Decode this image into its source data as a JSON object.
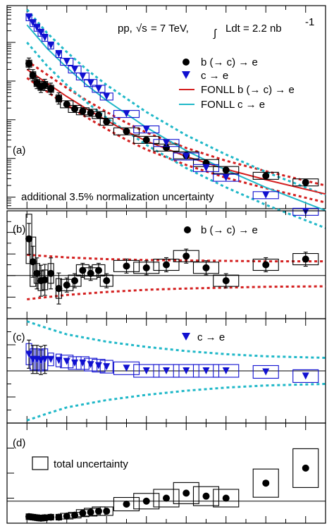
{
  "chart_data": [
    {
      "panel": "a",
      "type": "scatter",
      "panel_label": "(a)",
      "header": {
        "pre": "pp, ",
        "sqrt": "√s",
        "mid": " = 7 TeV, ",
        "integral": "Ldt = 2.2 nb",
        "exp": "-1"
      },
      "note": "additional 3.5% normalization uncertainty",
      "log_y": true,
      "xlim": [
        0.5,
        8.5
      ],
      "ylim_decades": 9,
      "series": [
        {
          "name": "b (→ c) → e",
          "marker": "circle",
          "color": "#000000",
          "x": [
            1.05,
            1.15,
            1.25,
            1.35,
            1.45,
            1.6,
            1.8,
            2.0,
            2.2,
            2.4,
            2.6,
            2.8,
            3.0,
            3.5,
            4.0,
            4.5,
            5.0,
            5.5,
            6.0,
            7.0,
            8.0
          ],
          "y": [
            -1.55,
            -1.85,
            -2.05,
            -2.15,
            -2.1,
            -2.2,
            -2.45,
            -2.6,
            -2.72,
            -2.78,
            -2.82,
            -2.88,
            -3.05,
            -3.3,
            -3.52,
            -3.72,
            -3.92,
            -4.12,
            -4.3,
            -4.45,
            -4.62
          ]
        },
        {
          "name": "c → e",
          "marker": "triangle-down",
          "color": "#1010d0",
          "x": [
            1.05,
            1.15,
            1.25,
            1.35,
            1.45,
            1.6,
            1.8,
            2.0,
            2.2,
            2.4,
            2.6,
            2.8,
            3.0,
            3.5,
            4.0,
            4.5,
            5.0,
            5.5,
            6.0,
            7.0,
            8.0
          ],
          "y": [
            -0.35,
            -0.5,
            -0.62,
            -0.75,
            -0.88,
            -1.08,
            -1.3,
            -1.5,
            -1.7,
            -1.88,
            -2.05,
            -2.2,
            -2.4,
            -2.85,
            -3.25,
            -3.6,
            -3.95,
            -4.25,
            -4.5,
            -4.95,
            -5.38
          ]
        }
      ],
      "curves": [
        {
          "name": "FONLL b (→ c) → e",
          "color": "#d42020",
          "x": [
            1.0,
            1.5,
            2.0,
            2.5,
            3.0,
            3.5,
            4.0,
            5.0,
            6.0,
            7.0,
            8.5
          ],
          "y": [
            -1.7,
            -2.05,
            -2.4,
            -2.72,
            -3.02,
            -3.3,
            -3.55,
            -3.95,
            -4.28,
            -4.55,
            -4.92
          ]
        },
        {
          "name": "FONLL c → e",
          "color": "#20b8c8",
          "x": [
            1.0,
            1.5,
            2.0,
            2.5,
            3.0,
            3.5,
            4.0,
            5.0,
            6.0,
            7.0,
            8.5
          ],
          "y": [
            -0.55,
            -1.15,
            -1.65,
            -2.1,
            -2.5,
            -2.85,
            -3.2,
            -3.8,
            -4.3,
            -4.75,
            -5.35
          ]
        }
      ]
    },
    {
      "panel": "b",
      "type": "scatter",
      "panel_label": "(b)",
      "legend": "b (→ c) → e",
      "xlim": [
        0.5,
        8.5
      ],
      "ylim": [
        -1.0,
        1.5
      ],
      "points": {
        "x": [
          1.05,
          1.15,
          1.25,
          1.35,
          1.45,
          1.6,
          1.8,
          2.0,
          2.2,
          2.4,
          2.6,
          2.8,
          3.0,
          3.5,
          4.0,
          4.5,
          5.0,
          5.5,
          6.0,
          7.0,
          8.0
        ],
        "y": [
          0.85,
          0.32,
          0.05,
          -0.12,
          -0.1,
          0.05,
          -0.3,
          -0.22,
          -0.12,
          0.12,
          0.05,
          0.12,
          -0.12,
          0.22,
          0.18,
          0.25,
          0.45,
          0.18,
          -0.12,
          0.25,
          0.38
        ]
      },
      "band_upper": {
        "x": [
          1.0,
          2.0,
          3.0,
          4.0,
          5.0,
          6.0,
          7.0,
          8.5
        ],
        "y": [
          0.48,
          0.42,
          0.38,
          0.36,
          0.35,
          0.34,
          0.33,
          0.33
        ]
      },
      "band_lower": {
        "x": [
          1.0,
          2.0,
          3.0,
          4.0,
          5.0,
          6.0,
          7.0,
          8.5
        ],
        "y": [
          -0.55,
          -0.45,
          -0.38,
          -0.33,
          -0.3,
          -0.28,
          -0.26,
          -0.25
        ]
      }
    },
    {
      "panel": "c",
      "type": "scatter",
      "panel_label": "(c)",
      "legend": "c → e",
      "xlim": [
        0.5,
        8.5
      ],
      "ylim": [
        -1.0,
        1.0
      ],
      "points": {
        "x": [
          1.05,
          1.15,
          1.25,
          1.35,
          1.45,
          1.6,
          1.8,
          2.0,
          2.2,
          2.4,
          2.6,
          2.8,
          3.0,
          3.5,
          4.0,
          4.5,
          5.0,
          5.5,
          6.0,
          7.0,
          8.0
        ],
        "y": [
          0.32,
          0.22,
          0.22,
          0.2,
          0.22,
          0.22,
          0.2,
          0.18,
          0.15,
          0.15,
          0.12,
          0.1,
          0.08,
          0.05,
          0.0,
          0.0,
          0.0,
          0.0,
          0.0,
          -0.02,
          -0.1
        ]
      },
      "band_upper": {
        "x": [
          1.0,
          1.5,
          2.0,
          3.0,
          4.0,
          5.0,
          6.0,
          7.0,
          8.5
        ],
        "y": [
          0.95,
          0.82,
          0.7,
          0.56,
          0.46,
          0.38,
          0.32,
          0.28,
          0.25
        ]
      },
      "band_lower": {
        "x": [
          1.0,
          1.5,
          2.0,
          3.0,
          4.0,
          5.0,
          6.0,
          7.0,
          8.5
        ],
        "y": [
          -0.95,
          -0.82,
          -0.7,
          -0.56,
          -0.46,
          -0.38,
          -0.32,
          -0.28,
          -0.25
        ]
      }
    },
    {
      "panel": "d",
      "type": "scatter",
      "panel_label": "(d)",
      "legend": "total uncertainty",
      "xlim": [
        0.5,
        8.5
      ],
      "ylim": [
        0,
        1.0
      ],
      "points": {
        "x": [
          1.05,
          1.15,
          1.25,
          1.35,
          1.45,
          1.6,
          1.8,
          2.0,
          2.2,
          2.4,
          2.6,
          2.8,
          3.0,
          3.5,
          4.0,
          4.5,
          5.0,
          5.5,
          6.0,
          7.0,
          8.0
        ],
        "y": [
          0.065,
          0.06,
          0.055,
          0.05,
          0.055,
          0.06,
          0.06,
          0.07,
          0.08,
          0.1,
          0.11,
          0.12,
          0.12,
          0.19,
          0.22,
          0.25,
          0.3,
          0.27,
          0.25,
          0.4,
          0.55
        ]
      }
    }
  ]
}
